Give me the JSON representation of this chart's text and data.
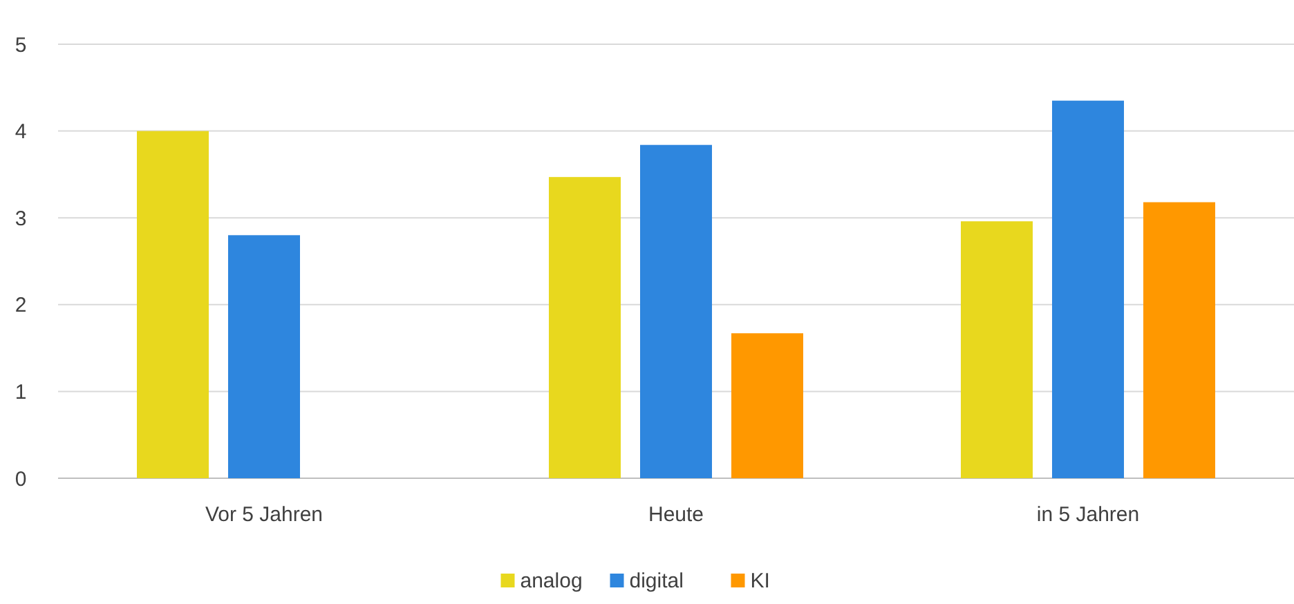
{
  "chart_data": {
    "type": "bar",
    "categories": [
      "Vor 5 Jahren",
      "Heute",
      "in 5 Jahren"
    ],
    "series": [
      {
        "name": "analog",
        "color": "#e8d81e",
        "values": [
          4.0,
          3.47,
          2.96
        ]
      },
      {
        "name": "digital",
        "color": "#2e86de",
        "values": [
          2.8,
          3.84,
          4.35
        ]
      },
      {
        "name": "KI",
        "color": "#ff9800",
        "values": [
          null,
          1.67,
          3.18
        ]
      }
    ],
    "ylim": [
      0,
      5
    ],
    "yticks": [
      0,
      1,
      2,
      3,
      4,
      5
    ],
    "grid": "y",
    "legend": "bottom"
  }
}
